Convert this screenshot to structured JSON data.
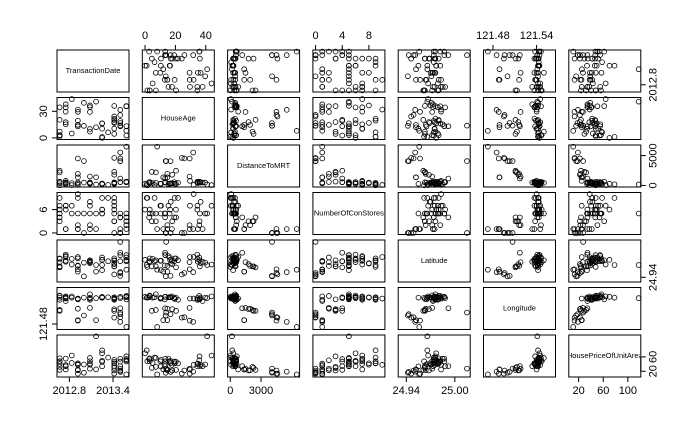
{
  "chart_data": {
    "type": "scatter_matrix",
    "point_color": "#000000",
    "variables": [
      {
        "name": "TransactionDate",
        "lim": [
          2012.63,
          2013.62
        ],
        "xticks": [
          2012.8,
          2013.4
        ],
        "yticks": [
          2012.8
        ],
        "values": [
          2012.917,
          2012.917,
          2013.583,
          2013.5,
          2012.833,
          2012.667,
          2012.667,
          2013.417,
          2013.5,
          2013.417,
          2013.083,
          2013.333,
          2012.917,
          2012.667,
          2013.5,
          2013.583,
          2013.25,
          2012.75,
          2013.417,
          2012.667,
          2013.417,
          2013.417,
          2012.917,
          2013.083,
          2013,
          2013.083,
          2012.667,
          2013.25,
          2013.5,
          2013.083,
          2013.5,
          2012.75,
          2012.75,
          2013.25,
          2012.75,
          2013.5,
          2012.917,
          2013.167,
          2012.667,
          2013.25,
          2013,
          2013.5,
          2013.417,
          2012.75,
          2013.583,
          2013.083,
          2013.417,
          2013.583,
          2013.417,
          2012.917,
          2013.167,
          2013.25,
          2012.833,
          2013.583
        ]
      },
      {
        "name": "HouseAge",
        "lim": [
          -1.8,
          45.6
        ],
        "xticks": [
          0,
          20,
          40
        ],
        "yticks": [
          0,
          30
        ],
        "values": [
          32,
          19.5,
          13.3,
          13.3,
          5,
          7.1,
          34.5,
          20.3,
          31.7,
          17.9,
          34.8,
          6.3,
          13,
          20.4,
          13.2,
          35.7,
          0,
          17.7,
          16.9,
          1.5,
          4.5,
          10.5,
          14.7,
          10.1,
          39.6,
          29.3,
          3.1,
          10.4,
          19.2,
          7.1,
          25.9,
          29.6,
          37.9,
          16.5,
          15.4,
          13.9,
          14.7,
          12,
          3.1,
          16.2,
          13.6,
          16.8,
          36.1,
          34.4,
          2.7,
          36.6,
          21.7,
          35.9,
          24.2,
          29.4,
          40.9,
          1.1,
          43.8,
          8
        ]
      },
      {
        "name": "DistanceToMRT",
        "lim": [
          -260,
          6770
        ],
        "xticks": [
          0,
          3000
        ],
        "yticks": [
          0,
          5000
        ],
        "values": [
          84.9,
          306.6,
          561.9,
          561.9,
          390.6,
          2175,
          623.5,
          287.6,
          5512,
          1783.2,
          405.2,
          90.5,
          492.2,
          2469.6,
          1164.8,
          579.2,
          292.9,
          350.9,
          368.1,
          23.4,
          2275.9,
          279.2,
          1360.1,
          279.2,
          480.7,
          1487.9,
          383.9,
          276.4,
          557.5,
          451.2,
          4519.7,
          769.4,
          488.6,
          323.7,
          205.4,
          4079.4,
          1935,
          1360.1,
          577.9,
          289.3,
          4082,
          4066.6,
          519.5,
          512.8,
          533.5,
          488.8,
          463.9,
          640.7,
          4605.7,
          4510.4,
          167.6,
          193.6,
          57.6,
          6488
        ]
      },
      {
        "name": "NumberOfConStores",
        "lim": [
          -0.4,
          10.4
        ],
        "xticks": [
          0,
          4,
          8
        ],
        "yticks": [
          0,
          6
        ],
        "values": [
          10,
          9,
          5,
          5,
          5,
          3,
          7,
          6,
          1,
          3,
          1,
          9,
          5,
          4,
          4,
          2,
          6,
          1,
          8,
          9,
          3,
          7,
          1,
          7,
          5,
          2,
          5,
          5,
          4,
          5,
          0,
          7,
          1,
          6,
          7,
          0,
          2,
          1,
          6,
          5,
          0,
          0,
          5,
          6,
          4,
          8,
          9,
          3,
          0,
          1,
          5,
          9,
          7,
          1
        ]
      },
      {
        "name": "Latitude",
        "lim": [
          24.93,
          25.019
        ],
        "xticks": [
          24.94,
          {
            "value": 25,
            "label": "25.00"
          }
        ],
        "yticks": [
          24.94
        ],
        "values": [
          24.983,
          24.98,
          24.987,
          24.987,
          24.979,
          24.963,
          24.979,
          24.98,
          24.951,
          24.968,
          24.973,
          24.974,
          24.965,
          24.961,
          24.992,
          24.982,
          24.977,
          24.975,
          24.969,
          24.962,
          24.963,
          24.975,
          24.952,
          24.975,
          24.971,
          24.972,
          24.98,
          24.955,
          24.974,
          24.976,
          24.949,
          24.983,
          24.973,
          24.977,
          24.985,
          25.015,
          24.964,
          24.952,
          24.972,
          24.982,
          24.942,
          24.943,
          24.963,
          24.988,
          24.974,
          24.97,
          24.976,
          24.976,
          24.946,
          24.957,
          24.966,
          24.966,
          24.967,
          24.956
        ]
      },
      {
        "name": "Longitude",
        "lim": [
          121.467,
          121.566
        ],
        "xticks": [
          121.48,
          121.54
        ],
        "yticks": [
          121.48
        ],
        "values": [
          121.54,
          121.539,
          121.544,
          121.544,
          121.542,
          121.513,
          121.537,
          121.542,
          121.485,
          121.515,
          121.537,
          121.543,
          121.538,
          121.511,
          121.517,
          121.546,
          121.544,
          121.545,
          121.543,
          121.542,
          121.511,
          121.54,
          121.489,
          121.54,
          121.542,
          121.518,
          121.546,
          121.542,
          121.541,
          121.55,
          121.496,
          121.54,
          121.534,
          121.543,
          121.543,
          121.507,
          121.516,
          121.489,
          121.547,
          121.543,
          121.5,
          121.503,
          121.539,
          121.541,
          121.543,
          121.542,
          121.537,
          121.538,
          121.495,
          121.488,
          121.541,
          121.542,
          121.545,
          121.473
        ]
      },
      {
        "name": "HousePriceOfUnitArea",
        "lim": [
          4,
          121
        ],
        "xticks": [
          20,
          60,
          100
        ],
        "yticks": [
          20,
          60
        ],
        "values": [
          37.9,
          42.2,
          47.3,
          54.8,
          43.1,
          32.1,
          40.3,
          46.7,
          18.8,
          22.1,
          41.4,
          58.1,
          39.3,
          23.8,
          34.3,
          50.5,
          70.1,
          37.4,
          42.3,
          47.7,
          29.3,
          51.6,
          24.6,
          47.9,
          38.8,
          27,
          56.2,
          33.6,
          47,
          57.1,
          22.1,
          25,
          34.2,
          49.3,
          55.1,
          27.3,
          22.9,
          25.3,
          47.7,
          46.2,
          15.9,
          18.2,
          34.7,
          34.1,
          53.9,
          38.3,
          42,
          61.5,
          13.4,
          13.2,
          117.5,
          78.3,
          63.9,
          11.2
        ]
      }
    ]
  }
}
